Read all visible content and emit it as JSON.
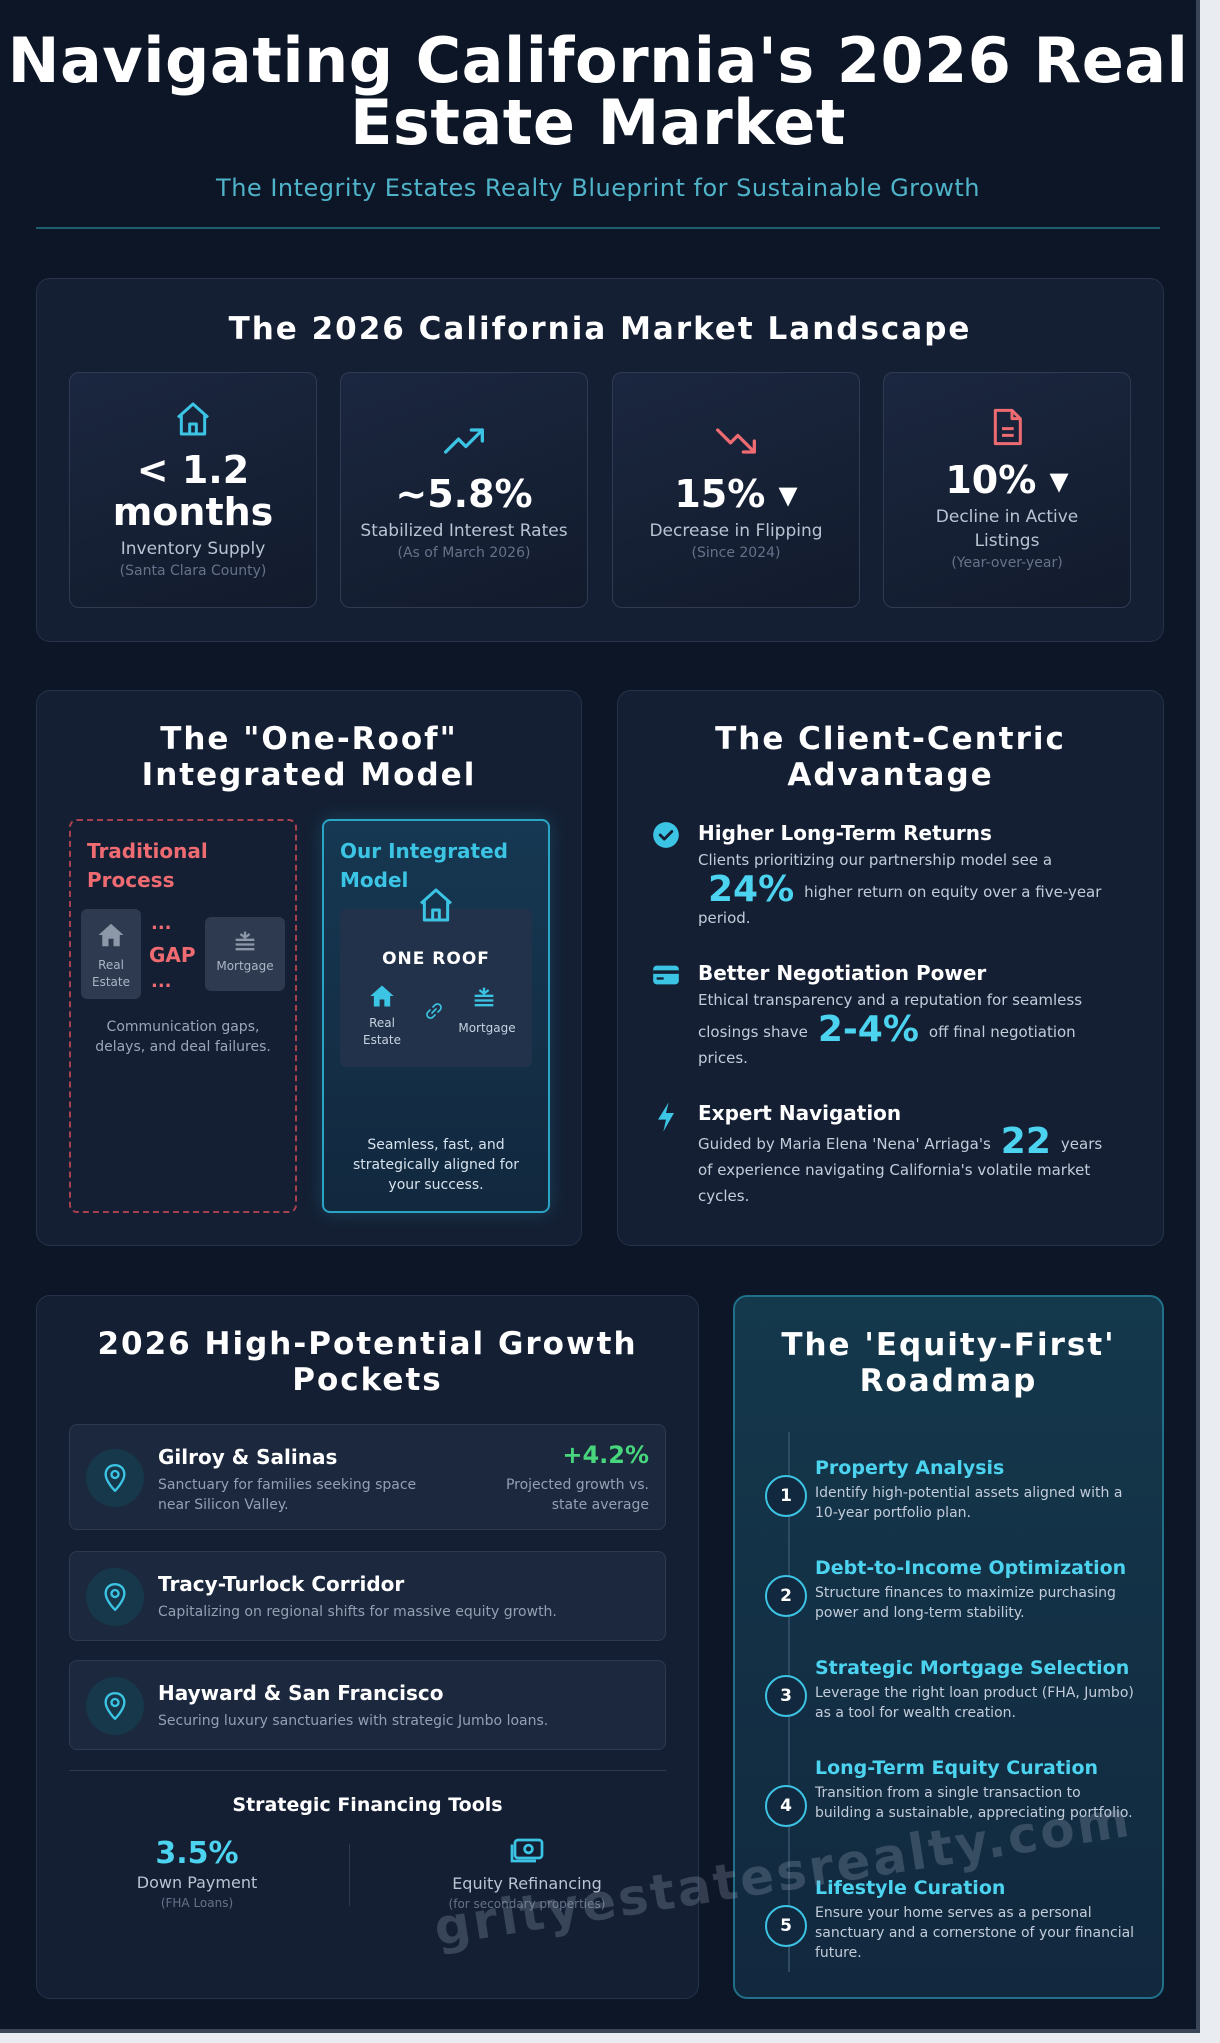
{
  "header": {
    "title_line1": "Navigating California's 2026 Real",
    "title_line2": "Estate Market",
    "subtitle": "The Integrity Estates Realty Blueprint for Sustainable Growth"
  },
  "landscape": {
    "title": "The 2026 California Market Landscape",
    "stats": [
      {
        "icon": "house-icon",
        "value_line1": "< 1.2",
        "value_line2": "months",
        "label": "Inventory Supply",
        "note": "(Santa Clara County)"
      },
      {
        "icon": "trend-up-icon",
        "value": "~5.8%",
        "label": "Stabilized Interest Rates",
        "note": "(As of March 2026)"
      },
      {
        "icon": "trend-down-icon",
        "value": "15% ▾",
        "label": "Decrease in Flipping",
        "note": "(Since 2024)"
      },
      {
        "icon": "document-icon",
        "value": "10% ▾",
        "label_line1": "Decline in Active",
        "label_line2": "Listings",
        "note": "(Year-over-year)"
      }
    ]
  },
  "one_roof": {
    "title_line1": "The \"One-Roof\"",
    "title_line2": "Integrated Model",
    "traditional": {
      "heading_line1": "Traditional",
      "heading_line2": "Process",
      "chip_real_estate_line1": "Real",
      "chip_real_estate_line2": "Estate",
      "gap_dots": "...",
      "gap_label": "GAP",
      "chip_mortgage": "Mortgage",
      "desc_line1": "Communication gaps,",
      "desc_line2": "delays, and deal failures."
    },
    "integrated": {
      "heading_line1": "Our Integrated",
      "heading_line2": "Model",
      "roof_label": "ONE ROOF",
      "real_estate_line1": "Real",
      "real_estate_line2": "Estate",
      "mortgage": "Mortgage",
      "desc_line1": "Seamless, fast, and",
      "desc_line2": "strategically aligned for",
      "desc_line3": "your success."
    }
  },
  "client_centric": {
    "title_line1": "The Client-Centric",
    "title_line2": "Advantage",
    "items": [
      {
        "icon": "check-circle-icon",
        "title": "Higher Long-Term Returns",
        "pre": "Clients prioritizing our partnership model see a",
        "big": "24%",
        "post": "higher return on equity over a five-year",
        "tail": "period."
      },
      {
        "icon": "credit-card-icon",
        "title": "Better Negotiation Power",
        "pre": "Ethical transparency and a reputation for seamless",
        "pre2": "closings shave",
        "big": "2-4%",
        "post": "off final negotiation",
        "tail": "prices."
      },
      {
        "icon": "lightning-icon",
        "title": "Expert Navigation",
        "pre": "Guided by Maria Elena 'Nena' Arriaga's",
        "big": "22",
        "post": "years",
        "tail": "of experience navigating California's volatile market",
        "tail2": "cycles."
      }
    ]
  },
  "growth": {
    "title_line1": "2026 High-Potential Growth",
    "title_line2": "Pockets",
    "pockets": [
      {
        "name": "Gilroy & Salinas",
        "desc_line1": "Sanctuary for families seeking space",
        "desc_line2": "near Silicon Valley.",
        "growth": "+4.2%",
        "growth_label_line1": "Projected growth vs.",
        "growth_label_line2": "state average"
      },
      {
        "name": "Tracy-Turlock Corridor",
        "desc_line1": "Capitalizing on regional shifts for massive equity growth."
      },
      {
        "name": "Hayward & San Francisco",
        "desc_line1": "Securing luxury sanctuaries with strategic Jumbo loans."
      }
    ],
    "financing": {
      "title": "Strategic Financing Tools",
      "down_value": "3.5%",
      "down_label": "Down Payment",
      "down_note": "(FHA Loans)",
      "refi_label": "Equity Refinancing",
      "refi_note": "(for secondary properties)"
    }
  },
  "roadmap": {
    "title_line1": "The 'Equity-First'",
    "title_line2": "Roadmap",
    "steps": [
      {
        "num": "1",
        "title": "Property Analysis",
        "desc": "Identify high-potential assets aligned with a 10-year portfolio plan."
      },
      {
        "num": "2",
        "title": "Debt-to-Income Optimization",
        "desc": "Structure finances to maximize purchasing power and long-term stability."
      },
      {
        "num": "3",
        "title": "Strategic Mortgage Selection",
        "desc": "Leverage the right loan product (FHA, Jumbo) as a tool for wealth creation."
      },
      {
        "num": "4",
        "title": "Long-Term Equity Curation",
        "desc": "Transition from a single transaction to building a sustainable, appreciating portfolio."
      },
      {
        "num": "5",
        "title": "Lifestyle Curation",
        "desc": "Ensure your home serves as a personal sanctuary and a cornerstone of your financial future."
      }
    ]
  },
  "watermark": "grityestatesrealty.com",
  "colors": {
    "accent": "#4cd3f0",
    "danger": "#ef6b72",
    "positive": "#48d67d",
    "background": "#0d1626"
  }
}
